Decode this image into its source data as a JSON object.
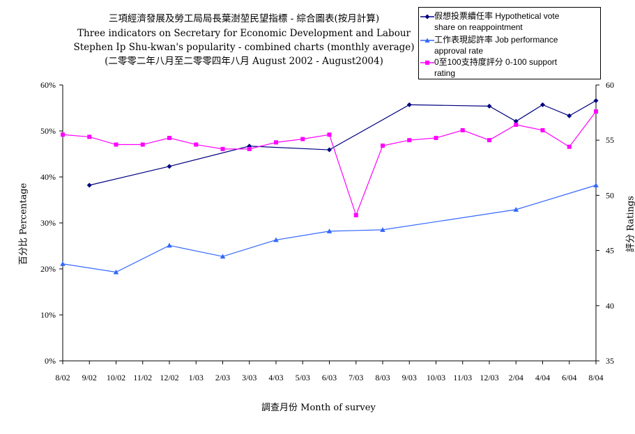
{
  "title": {
    "line1": "三項經濟發展及勞工局局長葉澍堃民望指標 - 綜合圖表(按月計算)",
    "line2": "Three indicators on Secretary for Economic Development and Labour",
    "line3": "Stephen Ip Shu-kwan's popularity - combined charts (monthly average)",
    "line4": "(二零零二年八月至二零零四年八月 August 2002 - August2004)"
  },
  "chart_data": {
    "type": "line",
    "categories": [
      "8/02",
      "9/02",
      "10/02",
      "11/02",
      "12/02",
      "1/03",
      "2/03",
      "3/03",
      "4/03",
      "5/03",
      "6/03",
      "7/03",
      "8/03",
      "9/03",
      "10/03",
      "11/03",
      "12/03",
      "2/04",
      "4/04",
      "6/04",
      "8/04"
    ],
    "xlabel": "調查月份  Month of survey",
    "ylabel_left": "百分比  Percentage",
    "ylabel_right": "評分  Ratings",
    "ylim_left": [
      0,
      60
    ],
    "yticks_left": [
      "0%",
      "10%",
      "20%",
      "30%",
      "40%",
      "50%",
      "60%"
    ],
    "ylim_right": [
      35,
      60
    ],
    "yticks_right": [
      "35",
      "40",
      "45",
      "50",
      "55",
      "60"
    ],
    "grid": false,
    "legend_position": "top-right",
    "series": [
      {
        "name": "假想投票續任率  Hypothetical vote share on reappointment",
        "axis": "left",
        "color": "#000080",
        "marker": "diamond",
        "values": [
          null,
          38.2,
          null,
          null,
          42.3,
          null,
          null,
          46.7,
          null,
          null,
          45.9,
          null,
          null,
          55.7,
          null,
          null,
          55.4,
          52.1,
          55.7,
          53.3,
          56.6
        ]
      },
      {
        "name": "工作表現認許率  Job performance approval rate",
        "axis": "left",
        "color": "#3366ff",
        "marker": "triangle",
        "values": [
          21.1,
          null,
          19.3,
          null,
          25.1,
          null,
          22.7,
          null,
          26.3,
          null,
          28.2,
          null,
          28.5,
          null,
          null,
          null,
          null,
          32.9,
          null,
          null,
          38.2
        ]
      },
      {
        "name": "0至100支持度評分  0-100 support rating",
        "axis": "right",
        "color": "#ff00ff",
        "marker": "square",
        "values": [
          55.5,
          55.3,
          54.6,
          54.6,
          55.2,
          54.6,
          54.2,
          54.2,
          54.8,
          55.1,
          55.5,
          48.2,
          54.5,
          55.0,
          55.2,
          55.9,
          55.0,
          56.4,
          55.9,
          54.4,
          57.6
        ]
      }
    ]
  },
  "legend": {
    "item1_line1": "假想投票續任率  Hypothetical vote",
    "item1_line2": "share on reappointment",
    "item2_line1": "工作表現認許率  Job performance",
    "item2_line2": "approval rate",
    "item3_line1": "0至100支持度評分  0-100 support",
    "item3_line2": "rating"
  }
}
